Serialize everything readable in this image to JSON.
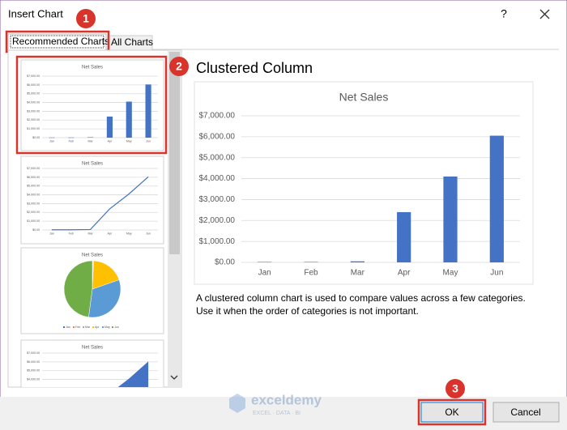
{
  "window": {
    "title": "Insert Chart",
    "help": "?"
  },
  "tabs": [
    "Recommended Charts",
    "All Charts"
  ],
  "callouts": [
    "1",
    "2",
    "3"
  ],
  "preview_heading": "Clustered Column",
  "chart_data": {
    "type": "bar",
    "title": "Net Sales",
    "categories": [
      "Jan",
      "Feb",
      "Mar",
      "Apr",
      "May",
      "Jun"
    ],
    "values": [
      20,
      20,
      50,
      2400,
      4100,
      6050
    ],
    "color": "#4472c4",
    "pie_colors": [
      "#4472c4",
      "#ed7d31",
      "#a5a5a5",
      "#ffc000",
      "#5b9bd5",
      "#70ad47"
    ],
    "ylim": [
      0,
      7000
    ],
    "yticks": [
      {
        "value": 0,
        "label": "$0.00"
      },
      {
        "value": 1000,
        "label": "$1,000.00"
      },
      {
        "value": 2000,
        "label": "$2,000.00"
      },
      {
        "value": 3000,
        "label": "$3,000.00"
      },
      {
        "value": 4000,
        "label": "$4,000.00"
      },
      {
        "value": 5000,
        "label": "$5,000.00"
      },
      {
        "value": 6000,
        "label": "$6,000.00"
      },
      {
        "value": 7000,
        "label": "$7,000.00"
      }
    ],
    "grid": true
  },
  "description": "A clustered column chart is used to compare values across a few categories. Use it when the order of categories is not important.",
  "buttons": {
    "ok": "OK",
    "cancel": "Cancel"
  },
  "watermark": {
    "name": "exceldemy",
    "tagline": "EXCEL · DATA · BI"
  }
}
